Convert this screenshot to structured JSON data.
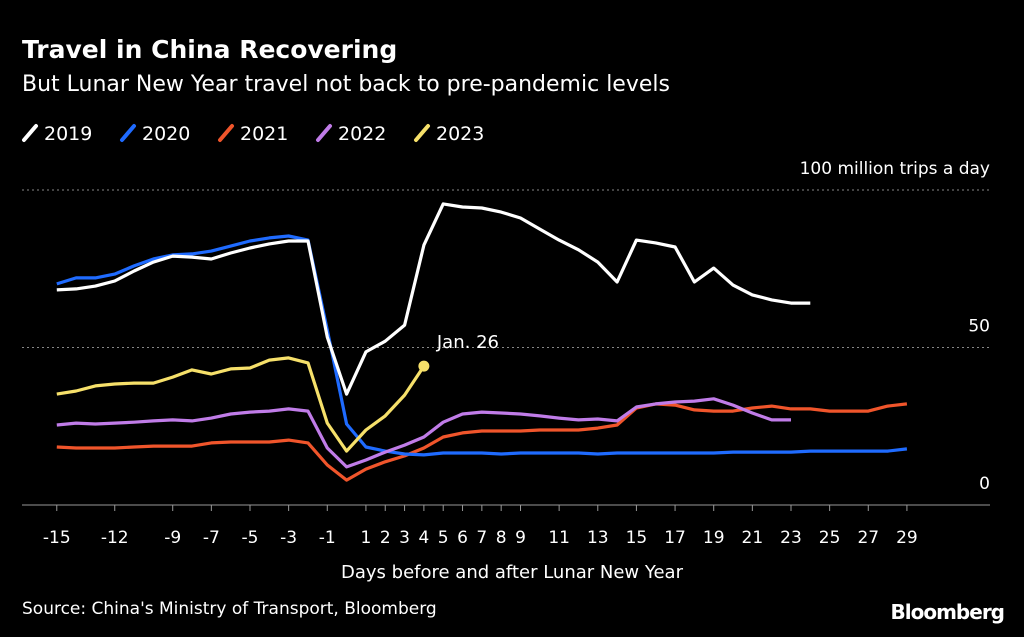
{
  "chart_data": {
    "type": "line",
    "title": "Travel in China Recovering",
    "subtitle": "But Lunar New Year travel not back to pre-pandemic levels",
    "xlabel": "Days before and after Lunar New Year",
    "source": "Source: China's Ministry of Transport, Bloomberg",
    "brand": "Bloomberg",
    "xlim": [
      -16.8,
      33.3
    ],
    "xticks": [
      -15,
      -12,
      -9,
      -7,
      -5,
      -3,
      -1,
      1,
      2,
      3,
      4,
      5,
      6,
      7,
      8,
      9,
      11,
      13,
      15,
      17,
      19,
      21,
      23,
      25,
      27,
      29
    ],
    "ylim": [
      0,
      100
    ],
    "yticks": [
      0,
      50,
      {
        "value": 100,
        "label": "100 million trips a day"
      }
    ],
    "grid": true,
    "legend": "top-left",
    "annotations": [
      {
        "text": "Jan. 26",
        "series": 4
      }
    ],
    "series": [
      {
        "name": "2019",
        "color": "#ffffff",
        "x": [
          -15,
          -14,
          -13,
          -12,
          -11,
          -10,
          -9,
          -8,
          -7,
          -6,
          -5,
          -4,
          -3,
          -2,
          -1,
          0,
          1,
          2,
          3,
          4,
          5,
          6,
          7,
          8,
          9,
          10,
          11,
          12,
          13,
          14,
          15,
          16,
          17,
          18,
          19,
          20,
          21,
          22,
          23,
          24
        ],
        "values": [
          68.3,
          68.6,
          69.5,
          71.1,
          74.3,
          77.1,
          79,
          78.7,
          78.1,
          80,
          81.6,
          82.9,
          83.8,
          83.8,
          53.3,
          35.2,
          48.6,
          52,
          57.1,
          82.5,
          95.6,
          94.6,
          94.3,
          93,
          91.1,
          87.6,
          84.1,
          81,
          77.1,
          70.8,
          84.1,
          83.2,
          81.9,
          70.8,
          75.2,
          69.8,
          66.7,
          65.1,
          64.1,
          64.1
        ]
      },
      {
        "name": "2020",
        "color": "#1f6bff",
        "x": [
          -15,
          -14,
          -13,
          -12,
          -11,
          -10,
          -9,
          -8,
          -7,
          -6,
          -5,
          -4,
          -3,
          -2,
          -1,
          0,
          1,
          2,
          3,
          4,
          5,
          6,
          7,
          8,
          9,
          10,
          11,
          12,
          13,
          14,
          15,
          16,
          17,
          18,
          19,
          20,
          21,
          22,
          23,
          24,
          25,
          26,
          27,
          28,
          29
        ],
        "values": [
          70.2,
          72.1,
          72.1,
          73.3,
          75.9,
          78.1,
          79.4,
          79.7,
          80.6,
          82.2,
          83.8,
          84.8,
          85.4,
          84.1,
          55.6,
          25.7,
          18.4,
          17.1,
          16.2,
          15.9,
          16.5,
          16.5,
          16.5,
          16.2,
          16.5,
          16.5,
          16.5,
          16.5,
          16.2,
          16.5,
          16.5,
          16.5,
          16.5,
          16.5,
          16.5,
          16.8,
          16.8,
          16.8,
          16.8,
          17.1,
          17.1,
          17.1,
          17.1,
          17.1,
          17.8
        ]
      },
      {
        "name": "2021",
        "color": "#f0552b",
        "x": [
          -15,
          -14,
          -13,
          -12,
          -11,
          -10,
          -9,
          -8,
          -7,
          -6,
          -5,
          -4,
          -3,
          -2,
          -1,
          0,
          1,
          2,
          3,
          4,
          5,
          6,
          7,
          8,
          9,
          10,
          11,
          12,
          13,
          14,
          15,
          16,
          17,
          18,
          19,
          20,
          21,
          22,
          23,
          24,
          25,
          26,
          27,
          28,
          29
        ],
        "values": [
          18.4,
          18.1,
          18.1,
          18.1,
          18.4,
          18.7,
          18.7,
          18.7,
          19.7,
          20,
          20,
          20,
          20.6,
          19.7,
          12.7,
          7.9,
          11.4,
          13.7,
          15.6,
          18.1,
          21.6,
          22.9,
          23.5,
          23.5,
          23.5,
          23.8,
          23.8,
          23.8,
          24.4,
          25.4,
          30.8,
          32.1,
          31.7,
          30.2,
          29.8,
          29.8,
          30.8,
          31.4,
          30.5,
          30.5,
          29.8,
          29.8,
          29.8,
          31.4,
          32.1
        ]
      },
      {
        "name": "2022",
        "color": "#c07ce8",
        "x": [
          -15,
          -14,
          -13,
          -12,
          -11,
          -10,
          -9,
          -8,
          -7,
          -6,
          -5,
          -4,
          -3,
          -2,
          -1,
          0,
          1,
          2,
          3,
          4,
          5,
          6,
          7,
          8,
          9,
          10,
          11,
          12,
          13,
          14,
          15,
          16,
          17,
          18,
          19,
          20,
          21,
          22,
          23
        ],
        "values": [
          25.4,
          26,
          25.7,
          26,
          26.3,
          26.7,
          27,
          26.7,
          27.6,
          28.9,
          29.5,
          29.8,
          30.5,
          29.8,
          18.1,
          12.1,
          14.3,
          16.8,
          19,
          21.6,
          26.3,
          28.9,
          29.5,
          29.2,
          28.9,
          28.3,
          27.6,
          27,
          27.3,
          26.7,
          31.1,
          32.1,
          32.7,
          33,
          33.7,
          31.7,
          29.2,
          27,
          27
        ]
      },
      {
        "name": "2023",
        "color": "#f6e06a",
        "x": [
          -15,
          -14,
          -13,
          -12,
          -11,
          -10,
          -9,
          -8,
          -7,
          -6,
          -5,
          -4,
          -3,
          -2,
          -1,
          0,
          1,
          2,
          3,
          4
        ],
        "values": [
          35.2,
          36.2,
          37.8,
          38.4,
          38.7,
          38.7,
          40.6,
          42.9,
          41.6,
          43.2,
          43.5,
          46,
          46.7,
          45.1,
          26,
          17.1,
          23.8,
          28.3,
          34.9,
          44.1
        ]
      }
    ]
  }
}
